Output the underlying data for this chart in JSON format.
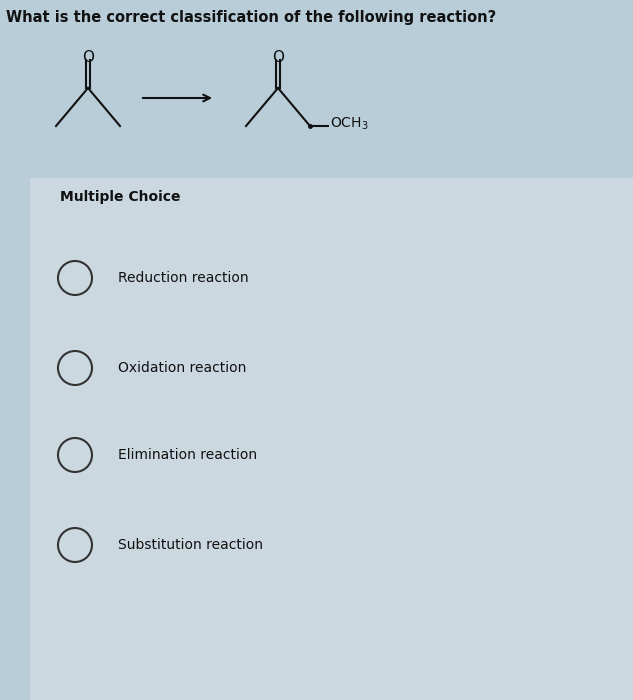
{
  "title": "What is the correct classification of the following reaction?",
  "title_fontsize": 10.5,
  "title_fontweight": "bold",
  "multiple_choice_label": "Multiple Choice",
  "mc_fontsize": 10,
  "mc_fontweight": "bold",
  "choices": [
    "Reduction reaction",
    "Oxidation reaction",
    "Elimination reaction",
    "Substitution reaction"
  ],
  "choice_fontsize": 10,
  "bg_color": "#b8cdd8",
  "mc_bg_color": "#ccd8e0",
  "mc_inner_bg": "#c5d5de",
  "circle_color": "#333333",
  "text_color": "#111111",
  "arrow_color": "#111111",
  "struct_color": "#111111",
  "fig_width": 6.33,
  "fig_height": 7.0,
  "dpi": 100
}
